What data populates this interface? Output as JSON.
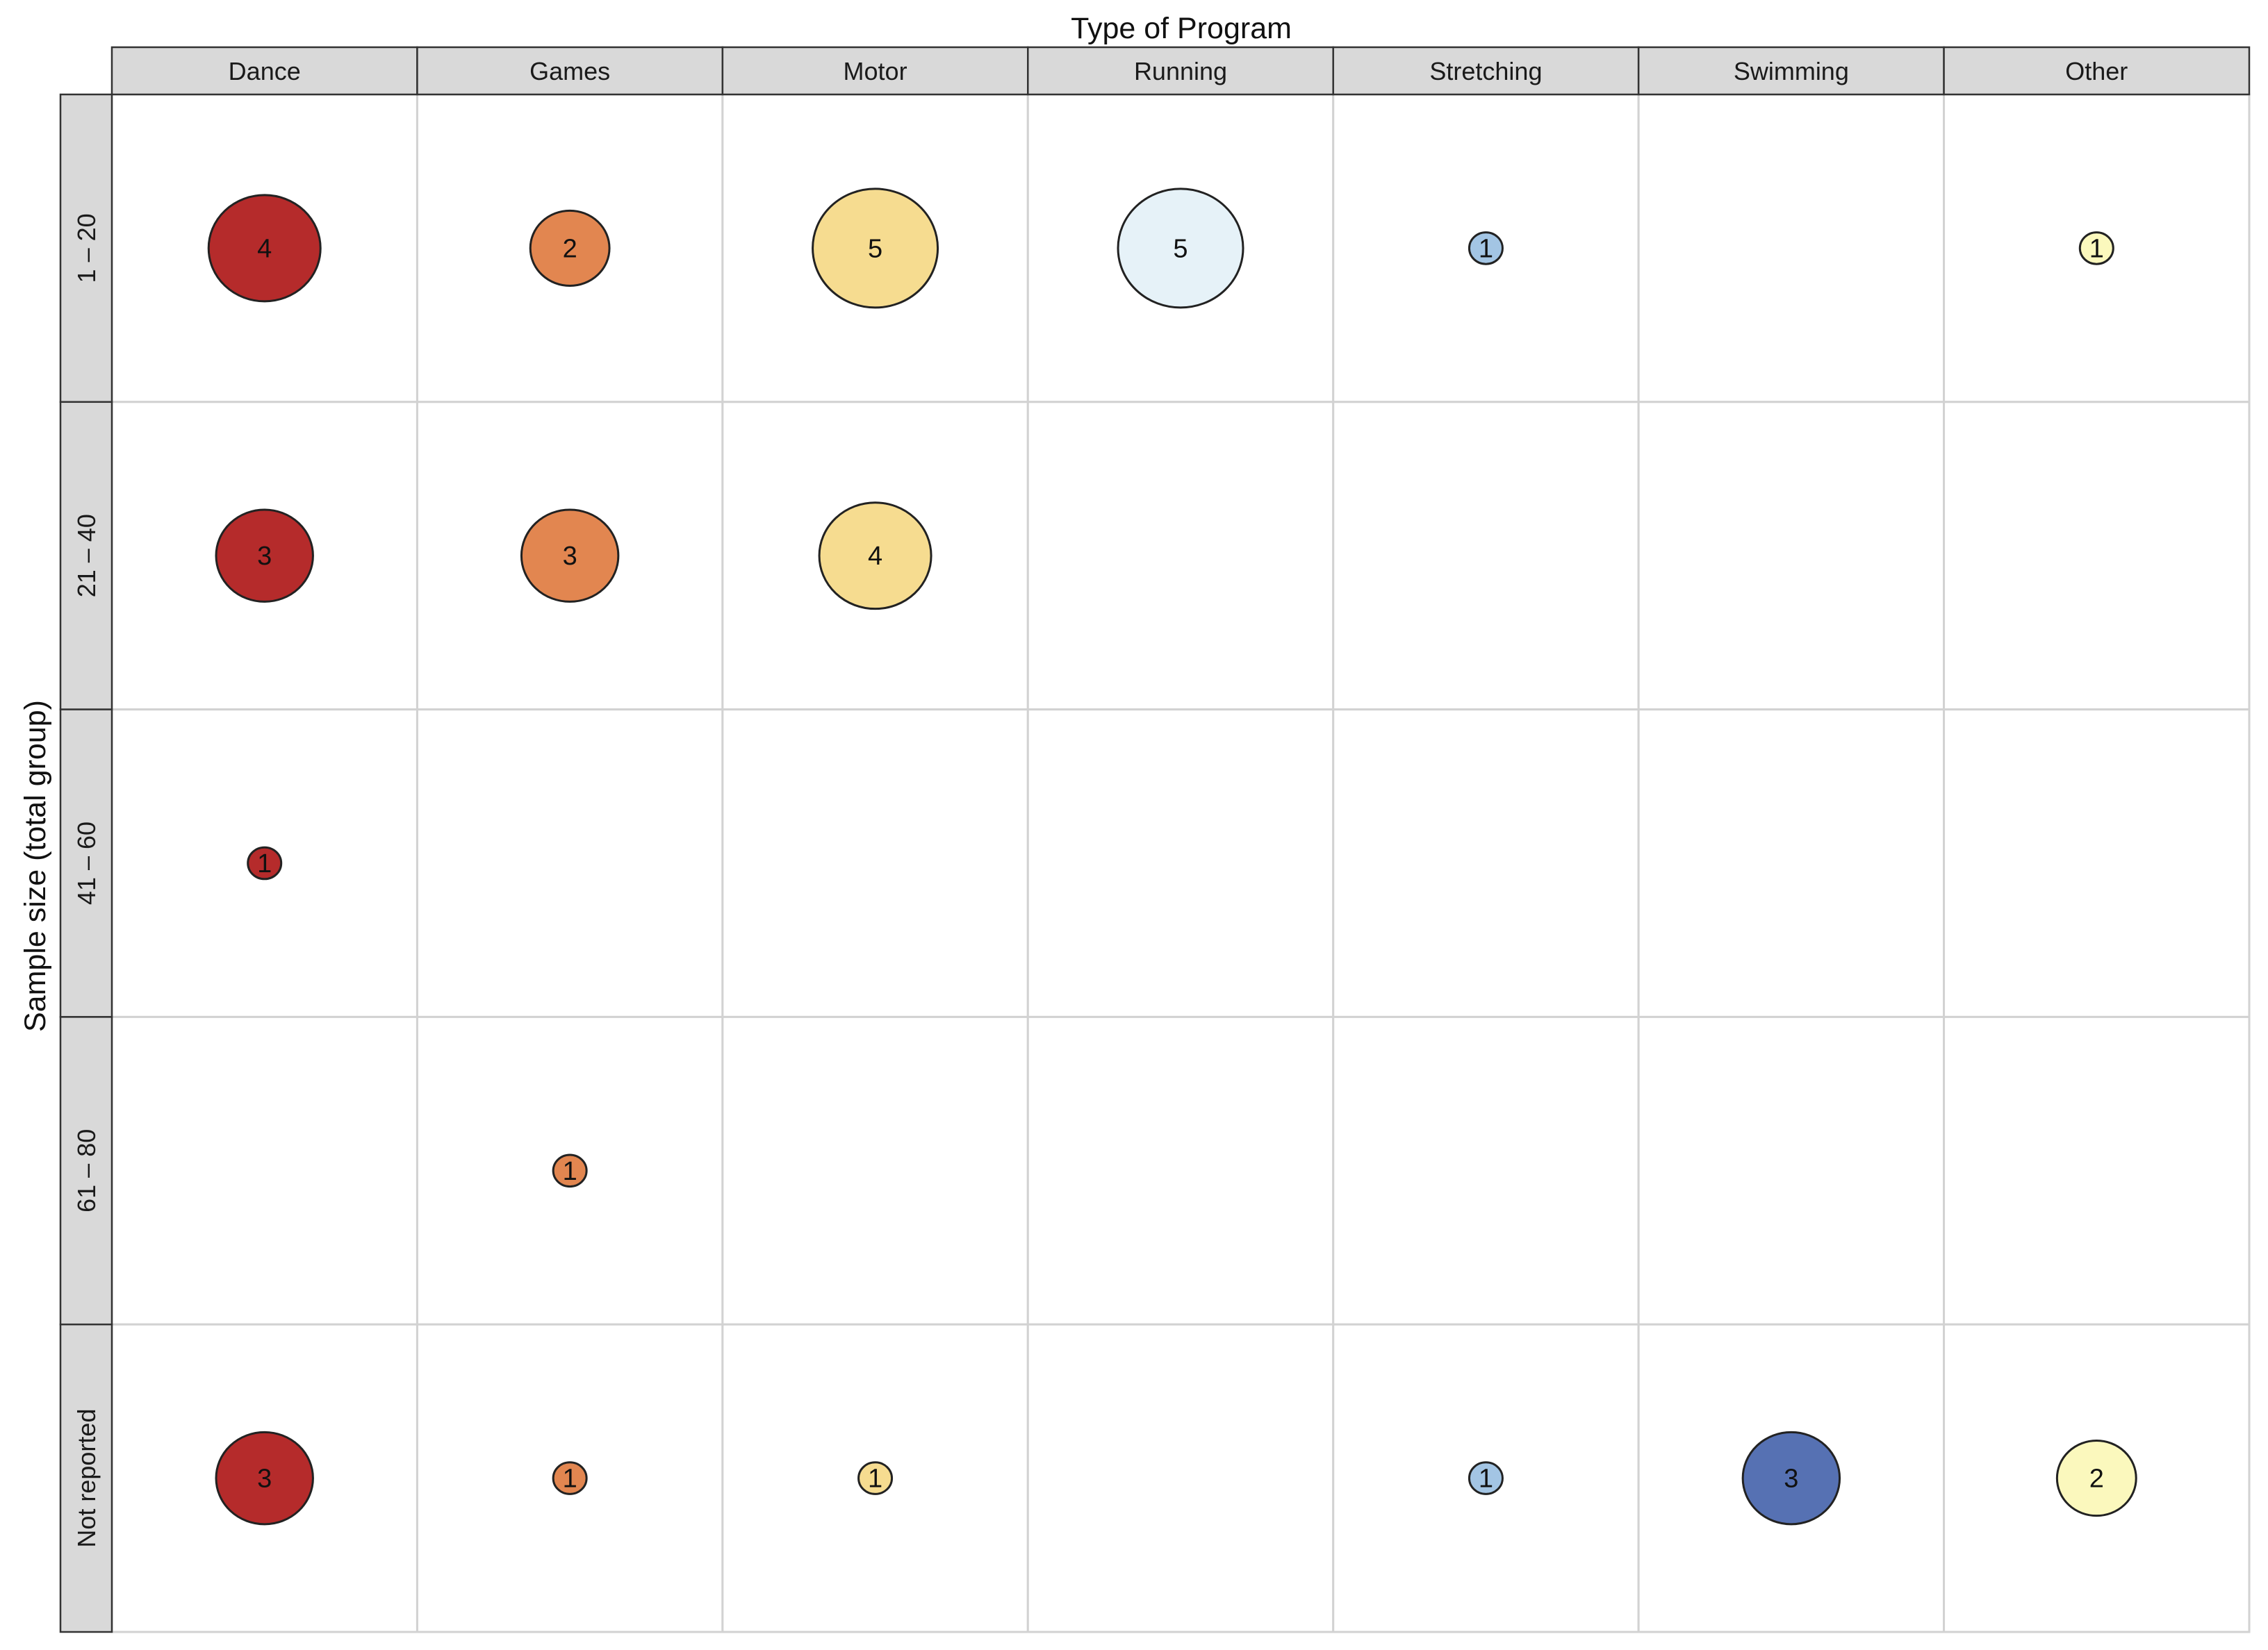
{
  "chart_data": {
    "type": "bubble-grid",
    "xlabel": "Type of Program",
    "ylabel": "Sample size (total group)",
    "columns": [
      "Dance",
      "Games",
      "Motor",
      "Running",
      "Stretching",
      "Swimming",
      "Other"
    ],
    "rows": [
      "1 – 20",
      "21 – 40",
      "41 – 60",
      "61 – 80",
      "Not reported"
    ],
    "column_colors": {
      "Dance": "#b52b2b",
      "Games": "#e28650",
      "Motor": "#f6dc90",
      "Running": "#e6f2f8",
      "Stretching": "#a3c5e4",
      "Swimming": "#5671b3",
      "Other": "#fbf8bd"
    },
    "cells": [
      {
        "row": "1 – 20",
        "column": "Dance",
        "value": 4
      },
      {
        "row": "1 – 20",
        "column": "Games",
        "value": 2
      },
      {
        "row": "1 – 20",
        "column": "Motor",
        "value": 5
      },
      {
        "row": "1 – 20",
        "column": "Running",
        "value": 5
      },
      {
        "row": "1 – 20",
        "column": "Stretching",
        "value": 1
      },
      {
        "row": "1 – 20",
        "column": "Other",
        "value": 1
      },
      {
        "row": "21 – 40",
        "column": "Dance",
        "value": 3
      },
      {
        "row": "21 – 40",
        "column": "Games",
        "value": 3
      },
      {
        "row": "21 – 40",
        "column": "Motor",
        "value": 4
      },
      {
        "row": "41 – 60",
        "column": "Dance",
        "value": 1
      },
      {
        "row": "61 – 80",
        "column": "Games",
        "value": 1
      },
      {
        "row": "Not reported",
        "column": "Dance",
        "value": 3
      },
      {
        "row": "Not reported",
        "column": "Games",
        "value": 1
      },
      {
        "row": "Not reported",
        "column": "Motor",
        "value": 1
      },
      {
        "row": "Not reported",
        "column": "Stretching",
        "value": 1
      },
      {
        "row": "Not reported",
        "column": "Swimming",
        "value": 3
      },
      {
        "row": "Not reported",
        "column": "Other",
        "value": 2
      }
    ]
  }
}
